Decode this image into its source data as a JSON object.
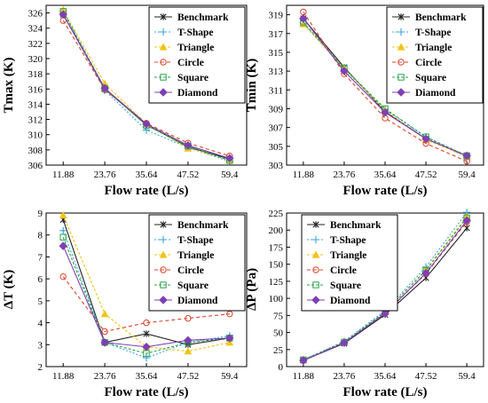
{
  "styles": {
    "axis_color": "#000000",
    "series": {
      "Benchmark": {
        "color": "#222222",
        "dash": "",
        "marker": "x-star"
      },
      "T-Shape": {
        "color": "#3aa6e0",
        "dash": "2,2",
        "marker": "plus"
      },
      "Triangle": {
        "color": "#f0c419",
        "dash": "3,2",
        "marker": "triangle"
      },
      "Circle": {
        "color": "#d9442b",
        "dash": "4,3",
        "marker": "circle"
      },
      "Square": {
        "color": "#29a24a",
        "dash": "3,2",
        "marker": "square"
      },
      "Diamond": {
        "color": "#7e3fb3",
        "dash": "",
        "marker": "diamond"
      }
    }
  },
  "chart_data": [
    {
      "id": "tmax",
      "type": "line",
      "ylabel": "Tmax (K)",
      "xlabel": "Flow rate (L/s)",
      "categories": [
        "11.88",
        "23.76",
        "35.64",
        "47.52",
        "59.4"
      ],
      "ylim": [
        306,
        327
      ],
      "yticks": [
        306,
        308,
        310,
        312,
        314,
        316,
        318,
        320,
        322,
        324,
        326
      ],
      "legend_position": "top-right",
      "series": [
        {
          "name": "Benchmark",
          "values": [
            325.8,
            316.0,
            311.3,
            308.4,
            306.8
          ]
        },
        {
          "name": "T-Shape",
          "values": [
            326.3,
            315.8,
            310.6,
            308.3,
            306.5
          ]
        },
        {
          "name": "Triangle",
          "values": [
            326.4,
            316.7,
            311.4,
            308.2,
            306.7
          ]
        },
        {
          "name": "Circle",
          "values": [
            325.0,
            315.9,
            311.5,
            308.9,
            307.2
          ]
        },
        {
          "name": "Square",
          "values": [
            326.2,
            316.1,
            311.2,
            308.5,
            306.6
          ]
        },
        {
          "name": "Diamond",
          "values": [
            325.8,
            316.1,
            311.4,
            308.6,
            306.9
          ]
        }
      ]
    },
    {
      "id": "tmin",
      "type": "line",
      "ylabel": "Tmin (K)",
      "xlabel": "Flow rate (L/s)",
      "categories": [
        "11.88",
        "23.76",
        "35.64",
        "47.52",
        "59.4"
      ],
      "ylim": [
        303,
        320
      ],
      "yticks": [
        303,
        305,
        307,
        309,
        311,
        313,
        315,
        317,
        319
      ],
      "legend_position": "top-right",
      "series": [
        {
          "name": "Benchmark",
          "values": [
            318.6,
            313.4,
            308.7,
            305.8,
            304.0
          ]
        },
        {
          "name": "T-Shape",
          "values": [
            318.1,
            313.2,
            308.9,
            306.0,
            303.8
          ]
        },
        {
          "name": "Triangle",
          "values": [
            318.0,
            313.3,
            308.8,
            305.7,
            303.9
          ]
        },
        {
          "name": "Circle",
          "values": [
            319.3,
            312.7,
            308.0,
            305.3,
            303.4
          ]
        },
        {
          "name": "Square",
          "values": [
            318.2,
            313.3,
            309.0,
            306.0,
            304.0
          ]
        },
        {
          "name": "Diamond",
          "values": [
            318.6,
            313.0,
            308.6,
            305.8,
            304.0
          ]
        }
      ]
    },
    {
      "id": "deltat",
      "type": "line",
      "ylabel": "ΔT (K)",
      "xlabel": "Flow rate (L/s)",
      "categories": [
        "11.88",
        "23.76",
        "35.64",
        "47.52",
        "59.4"
      ],
      "ylim": [
        2,
        9
      ],
      "yticks": [
        2,
        3,
        4,
        5,
        6,
        7,
        8,
        9
      ],
      "legend_position": "top-right",
      "series": [
        {
          "name": "Benchmark",
          "values": [
            8.7,
            3.1,
            3.5,
            3.0,
            3.3
          ]
        },
        {
          "name": "T-Shape",
          "values": [
            8.2,
            3.1,
            2.4,
            3.1,
            3.4
          ]
        },
        {
          "name": "Triangle",
          "values": [
            8.9,
            4.4,
            2.9,
            2.7,
            3.1
          ]
        },
        {
          "name": "Circle",
          "values": [
            6.1,
            3.6,
            4.0,
            4.2,
            4.4
          ]
        },
        {
          "name": "Square",
          "values": [
            7.9,
            3.1,
            2.6,
            3.1,
            3.3
          ]
        },
        {
          "name": "Diamond",
          "values": [
            7.5,
            3.1,
            2.9,
            3.2,
            3.3
          ]
        }
      ]
    },
    {
      "id": "deltap",
      "type": "line",
      "ylabel": "ΔP (Pa)",
      "xlabel": "Flow rate (L/s)",
      "categories": [
        "11.88",
        "23.76",
        "35.64",
        "47.52",
        "59.4"
      ],
      "ylim": [
        0,
        225
      ],
      "yticks": [
        0,
        25,
        50,
        75,
        100,
        125,
        150,
        175,
        200,
        225
      ],
      "legend_position": "top-left",
      "series": [
        {
          "name": "Benchmark",
          "values": [
            9,
            34,
            76,
            130,
            203
          ]
        },
        {
          "name": "T-Shape",
          "values": [
            10,
            37,
            82,
            146,
            226
          ]
        },
        {
          "name": "Triangle",
          "values": [
            10,
            36,
            80,
            142,
            220
          ]
        },
        {
          "name": "Circle",
          "values": [
            9,
            35,
            78,
            136,
            212
          ]
        },
        {
          "name": "Square",
          "values": [
            10,
            36,
            80,
            141,
            218
          ]
        },
        {
          "name": "Diamond",
          "values": [
            9,
            35,
            78,
            137,
            214
          ]
        }
      ]
    }
  ]
}
